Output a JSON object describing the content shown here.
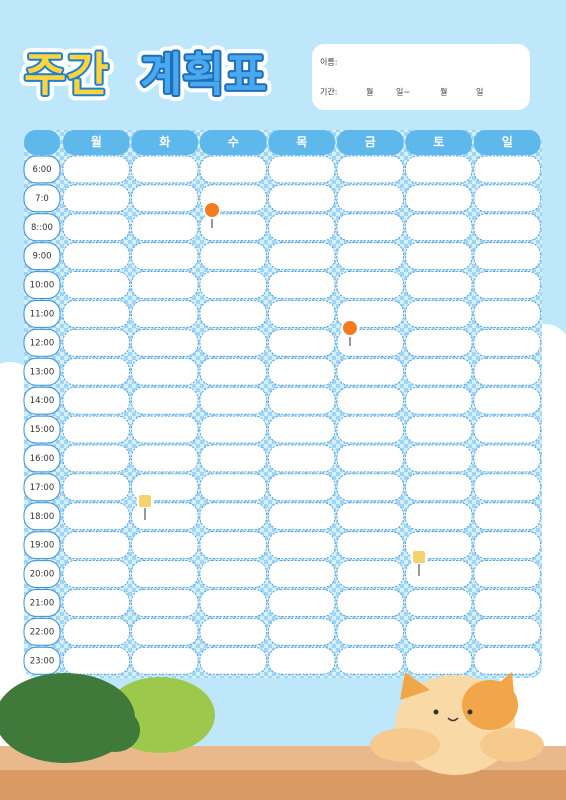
{
  "header": {
    "title_parts": [
      "주간",
      "계획표"
    ]
  },
  "info": {
    "name_label": "이름:",
    "period_label": "기간:",
    "period_parts": [
      "월",
      "일~",
      "월",
      "일"
    ]
  },
  "table": {
    "days": [
      "월",
      "화",
      "수",
      "목",
      "금",
      "토",
      "일"
    ],
    "times": [
      "6:00",
      "7:0",
      "8::00",
      "9:00",
      "10:00",
      "11:00",
      "12:00",
      "13:00",
      "14:00",
      "15:00",
      "16:00",
      "17:00",
      "18:00",
      "19:00",
      "20:00",
      "21:00",
      "22:00",
      "23:00"
    ]
  }
}
